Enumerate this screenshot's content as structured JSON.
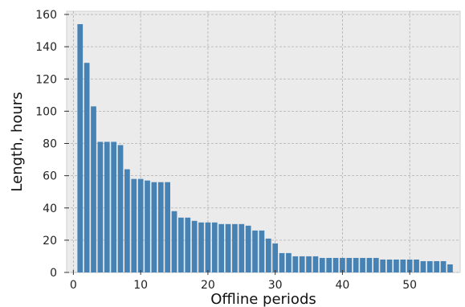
{
  "chart_data": {
    "type": "bar",
    "title": "",
    "xlabel": "Offline periods",
    "ylabel": "Length, hours",
    "x": [
      1,
      2,
      3,
      4,
      5,
      6,
      7,
      8,
      9,
      10,
      11,
      12,
      13,
      14,
      15,
      16,
      17,
      18,
      19,
      20,
      21,
      22,
      23,
      24,
      25,
      26,
      27,
      28,
      29,
      30,
      31,
      32,
      33,
      34,
      35,
      36,
      37,
      38,
      39,
      40,
      41,
      42,
      43,
      44,
      45,
      46,
      47,
      48,
      49,
      50,
      51,
      52,
      53,
      54,
      55,
      56
    ],
    "values": [
      154,
      130,
      103,
      81,
      81,
      81,
      79,
      64,
      58,
      58,
      57,
      56,
      56,
      56,
      38,
      34,
      34,
      32,
      31,
      31,
      31,
      30,
      30,
      30,
      30,
      29,
      26,
      26,
      21,
      18,
      12,
      12,
      10,
      10,
      10,
      10,
      9,
      9,
      9,
      9,
      9,
      9,
      9,
      9,
      9,
      8,
      8,
      8,
      8,
      8,
      8,
      7,
      7,
      7,
      7,
      5
    ],
    "xlim": [
      -1,
      57.5
    ],
    "ylim": [
      0,
      162
    ],
    "xticks": [
      0,
      10,
      20,
      30,
      40,
      50
    ],
    "yticks": [
      0,
      20,
      40,
      60,
      80,
      100,
      120,
      140,
      160
    ],
    "grid": true,
    "bar_color": "#4682b4",
    "plot_background": "#ebebeb",
    "grid_color": "#b0b0b0"
  }
}
